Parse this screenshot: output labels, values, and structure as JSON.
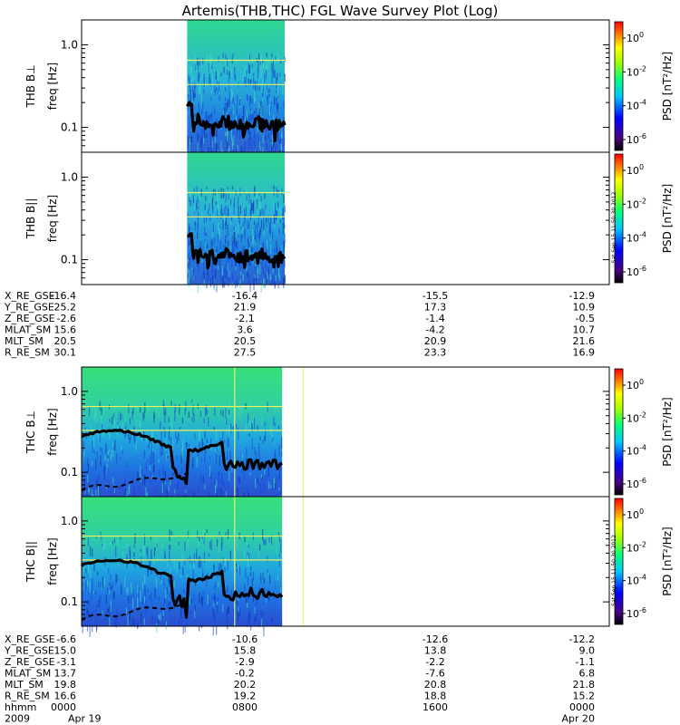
{
  "chart_data": {
    "type": "heatmap",
    "title": "Artemis(THB,THC) FGL Wave Survey Plot (Log)",
    "freq_axis": {
      "label": "freq [Hz]",
      "scale": "log",
      "ylim": [
        0.05,
        2.0
      ],
      "ticks": [
        "1.0",
        "0.1"
      ]
    },
    "colorbar": {
      "label": "PSD [nT²/Hz]",
      "base": "10",
      "exponents": [
        "0",
        "-2",
        "-4",
        "-6"
      ]
    },
    "side_stamp": "Sat Sep 15 11:50:30 2012",
    "panels": [
      {
        "probe": "THB",
        "label": "THB B⊥",
        "coverage_fraction": [
          0.2,
          0.385
        ]
      },
      {
        "probe": "THB",
        "label": "THB B||",
        "coverage_fraction": [
          0.2,
          0.385
        ]
      },
      {
        "probe": "THC",
        "label": "THC B⊥",
        "coverage_fraction": [
          0.0,
          0.38
        ]
      },
      {
        "probe": "THC",
        "label": "THC B||",
        "coverage_fraction": [
          0.0,
          0.38
        ]
      }
    ],
    "ephemeris": [
      {
        "rows": [
          {
            "name": "X_RE_GSE",
            "values": [
              "-16.4",
              "-16.4",
              "-15.5",
              "-12.9"
            ]
          },
          {
            "name": "Y_RE_GSE",
            "values": [
              "25.2",
              "21.9",
              "17.3",
              "10.9"
            ]
          },
          {
            "name": "Z_RE_GSE",
            "values": [
              "-2.6",
              "-2.1",
              "-1.4",
              "-0.5"
            ]
          },
          {
            "name": "MLAT_SM",
            "values": [
              "15.6",
              "3.6",
              "-4.2",
              "10.7"
            ]
          },
          {
            "name": "MLT_SM",
            "values": [
              "20.5",
              "20.5",
              "20.9",
              "21.6"
            ]
          },
          {
            "name": "R_RE_SM",
            "values": [
              "30.1",
              "27.5",
              "23.3",
              "16.9"
            ]
          }
        ]
      },
      {
        "rows": [
          {
            "name": "X_RE_GSE",
            "values": [
              "-6.6",
              "-10.6",
              "-12.6",
              "-12.2"
            ]
          },
          {
            "name": "Y_RE_GSE",
            "values": [
              "15.0",
              "15.8",
              "13.8",
              "9.0"
            ]
          },
          {
            "name": "Z_RE_GSE",
            "values": [
              "-3.1",
              "-2.9",
              "-2.2",
              "-1.1"
            ]
          },
          {
            "name": "MLAT_SM",
            "values": [
              "13.7",
              "-0.2",
              "-7.6",
              "6.8"
            ]
          },
          {
            "name": "MLT_SM",
            "values": [
              "19.8",
              "20.2",
              "20.8",
              "21.8"
            ]
          },
          {
            "name": "R_RE_SM",
            "values": [
              "16.6",
              "19.2",
              "18.8",
              "15.2"
            ]
          },
          {
            "name": "hhmm",
            "values": [
              "0000",
              "0800",
              "1600",
              "0000"
            ]
          }
        ],
        "date_row": {
          "year": "2009",
          "start": "Apr 19",
          "end": "Apr 20"
        }
      }
    ]
  }
}
